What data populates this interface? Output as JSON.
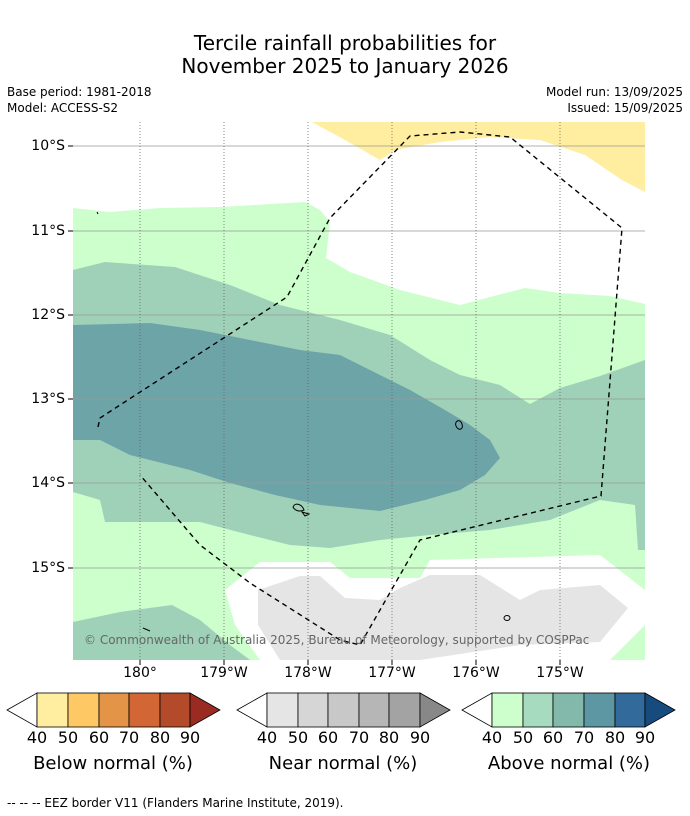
{
  "title": {
    "line1": "Tercile rainfall probabilities for",
    "line2": "November 2025 to January 2026"
  },
  "meta": {
    "base_period": "Base period: 1981-2018",
    "model": "Model: ACCESS-S2",
    "model_run": "Model run: 13/09/2025",
    "issued": "Issued: 15/09/2025"
  },
  "map": {
    "lat_labels": [
      "10°S",
      "11°S",
      "12°S",
      "13°S",
      "14°S",
      "15°S"
    ],
    "lon_labels": [
      "180°",
      "179°W",
      "178°W",
      "177°W",
      "176°W",
      "175°W"
    ],
    "copyright": "© Commonwealth of Australia 2025, Bureau of Meteorology, supported by COSPPac",
    "layers": {
      "below_normal_40_50": "#ffeda0",
      "above_normal_40_50": "#ccffcc",
      "above_normal_50_60": "#9fd1b9",
      "above_normal_60_70": "#6da4a8",
      "near_normal_40_50": "#e5e5e5"
    }
  },
  "colorbars": [
    {
      "title": "Below normal (%)",
      "ticks": [
        "40",
        "50",
        "60",
        "70",
        "80",
        "90"
      ],
      "colors": [
        "#ffeda0",
        "#fec965",
        "#e39447",
        "#d26634",
        "#b34b2b",
        "#9a2b22"
      ]
    },
    {
      "title": "Near normal (%)",
      "ticks": [
        "40",
        "50",
        "60",
        "70",
        "80",
        "90"
      ],
      "colors": [
        "#e5e5e5",
        "#d6d6d6",
        "#c8c8c8",
        "#b6b6b6",
        "#a3a3a3",
        "#888888"
      ]
    },
    {
      "title": "Above normal (%)",
      "ticks": [
        "40",
        "50",
        "60",
        "70",
        "80",
        "90"
      ],
      "colors": [
        "#ccffcc",
        "#a7dbbf",
        "#83b9ab",
        "#5d97a3",
        "#336a9c",
        "#174b7e"
      ]
    }
  ],
  "footnote": "--  --  -- EEZ border V11 (Flanders Marine Institute, 2019)."
}
